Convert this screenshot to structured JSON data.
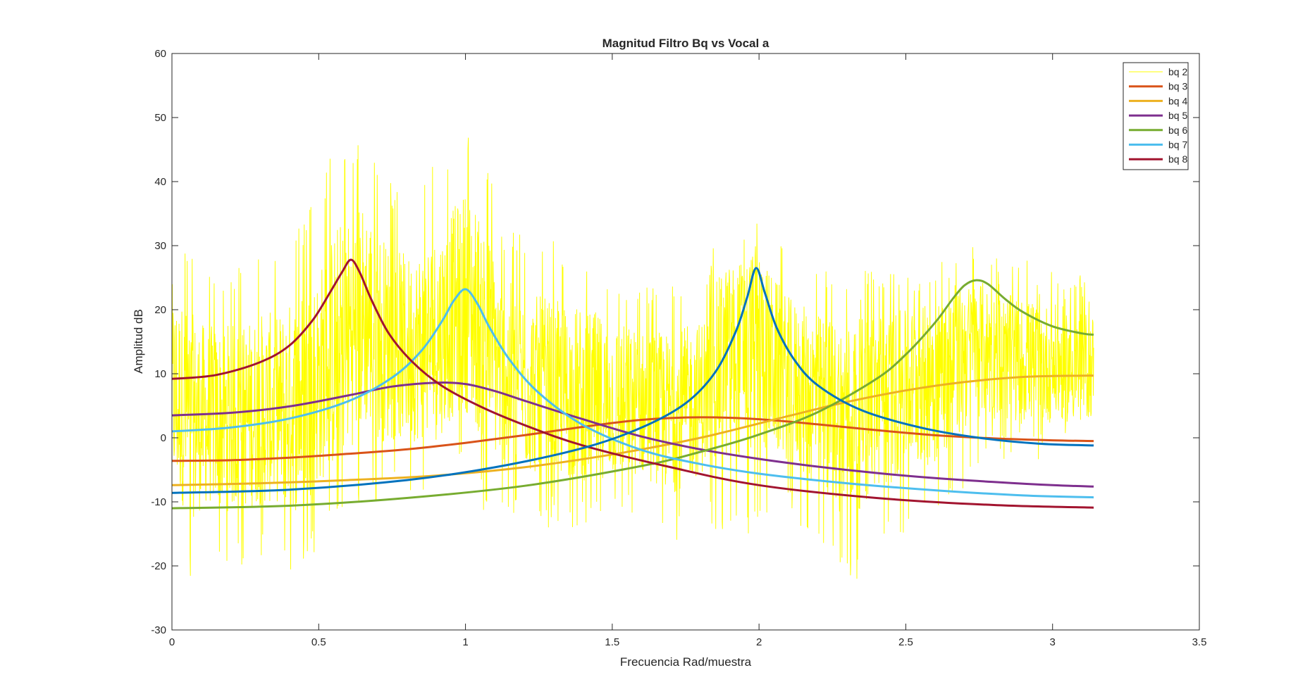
{
  "chart_data": {
    "type": "line",
    "title": "Magnitud Filtro Bq vs Vocal a",
    "xlabel": "Frecuencia Rad/muestra",
    "ylabel": "Amplitud dB",
    "xlim": [
      0,
      3.5
    ],
    "ylim": [
      -30,
      60
    ],
    "xticks": [
      "0",
      "0.5",
      "1",
      "1.5",
      "2",
      "2.5",
      "3",
      "3.5"
    ],
    "yticks": [
      "-30",
      "-20",
      "-10",
      "0",
      "10",
      "20",
      "30",
      "40",
      "50",
      "60"
    ],
    "grid": false,
    "legend_position": "top-right",
    "series": [
      {
        "name": "bq 2",
        "color": "#ffff00",
        "style": "noisy-spectrum",
        "x": [
          0,
          0.06,
          0.12,
          0.18,
          0.24,
          0.3,
          0.36,
          0.42,
          0.5,
          0.56,
          0.6,
          0.66,
          0.72,
          0.8,
          0.9,
          0.96,
          1.0,
          1.06,
          1.12,
          1.2,
          1.3,
          1.4,
          1.5,
          1.6,
          1.7,
          1.8,
          1.88,
          1.95,
          1.99,
          2.04,
          2.1,
          2.2,
          2.3,
          2.4,
          2.5,
          2.6,
          2.7,
          2.75,
          2.8,
          2.9,
          3.0,
          3.1,
          3.14
        ],
        "envelope_high": [
          36,
          30,
          27,
          28,
          27,
          30,
          29,
          33,
          38,
          47,
          46,
          50,
          41,
          38,
          43,
          47,
          50,
          46,
          34,
          32,
          31,
          30,
          27,
          25,
          24,
          26,
          35,
          34,
          37,
          33,
          30,
          27,
          25,
          27,
          26,
          27,
          29,
          31,
          28,
          28,
          27,
          26,
          26
        ],
        "envelope_low": [
          -14,
          -23,
          -18,
          -20,
          -20,
          -19,
          -19,
          -22,
          -17,
          -15,
          -13,
          -9,
          -11,
          -9,
          -10,
          -6,
          -6,
          -12,
          -14,
          -14,
          -14,
          -14,
          -13,
          -12,
          -17,
          -13,
          -15,
          -18,
          -14,
          -14,
          -11,
          -18,
          -24,
          -20,
          -15,
          -14,
          -8,
          -4,
          -4,
          -4,
          -3,
          -2,
          -1
        ],
        "trend": [
          5,
          3,
          2,
          2,
          3,
          3,
          4,
          5,
          8,
          12,
          16,
          18,
          16,
          13,
          15,
          18,
          21,
          17,
          11,
          8,
          6,
          5,
          5,
          4,
          4,
          6,
          14,
          18,
          19,
          14,
          9,
          7,
          6,
          8,
          10,
          12,
          15,
          15,
          14,
          12,
          11,
          10,
          10
        ]
      },
      {
        "name": "bq 3",
        "color": "#d95319",
        "x": [
          0,
          0.2,
          0.4,
          0.6,
          0.8,
          1.0,
          1.2,
          1.4,
          1.6,
          1.8,
          2.0,
          2.2,
          2.4,
          2.6,
          2.8,
          3.0,
          3.14
        ],
        "y": [
          -3.6,
          -3.5,
          -3.1,
          -2.5,
          -1.8,
          -0.8,
          0.4,
          1.7,
          2.8,
          3.2,
          2.9,
          2.1,
          1.2,
          0.4,
          -0.1,
          -0.4,
          -0.5
        ]
      },
      {
        "name": "bq 4",
        "color": "#edb120",
        "x": [
          0,
          0.3,
          0.6,
          0.9,
          1.2,
          1.5,
          1.8,
          2.1,
          2.3,
          2.5,
          2.7,
          2.9,
          3.1,
          3.14
        ],
        "y": [
          -7.4,
          -7.1,
          -6.6,
          -5.9,
          -4.6,
          -2.6,
          0.0,
          3.4,
          5.6,
          7.4,
          8.7,
          9.5,
          9.7,
          9.7
        ]
      },
      {
        "name": "bq 5",
        "color": "#7e2f8e",
        "x": [
          0,
          0.2,
          0.4,
          0.6,
          0.75,
          0.9,
          1.0,
          1.1,
          1.2,
          1.4,
          1.6,
          1.8,
          2.0,
          2.2,
          2.4,
          2.6,
          2.8,
          3.0,
          3.14
        ],
        "y": [
          3.5,
          3.9,
          4.9,
          6.6,
          8.0,
          8.6,
          8.4,
          7.3,
          5.8,
          2.9,
          0.2,
          -1.8,
          -3.3,
          -4.5,
          -5.5,
          -6.3,
          -6.9,
          -7.4,
          -7.6
        ]
      },
      {
        "name": "bq 6",
        "color": "#77ac30",
        "x": [
          0,
          0.4,
          0.8,
          1.2,
          1.6,
          1.8,
          2.0,
          2.2,
          2.4,
          2.5,
          2.6,
          2.66,
          2.7,
          2.74,
          2.78,
          2.84,
          2.9,
          3.0,
          3.1,
          3.14
        ],
        "y": [
          -11.0,
          -10.6,
          -9.4,
          -7.5,
          -4.4,
          -2.2,
          0.5,
          4.0,
          9.2,
          13.0,
          18.0,
          21.7,
          23.8,
          24.6,
          24.0,
          21.6,
          19.6,
          17.4,
          16.3,
          16.1
        ]
      },
      {
        "name": "bq 7",
        "color": "#4dbeee",
        "x": [
          0,
          0.2,
          0.4,
          0.6,
          0.75,
          0.85,
          0.92,
          0.96,
          1.0,
          1.04,
          1.08,
          1.15,
          1.25,
          1.4,
          1.6,
          1.8,
          2.0,
          2.3,
          2.6,
          2.9,
          3.14
        ],
        "y": [
          1.0,
          1.6,
          3.0,
          5.7,
          9.4,
          13.6,
          18.2,
          21.4,
          23.2,
          21.0,
          17.4,
          12.2,
          7.0,
          2.0,
          -1.9,
          -4.1,
          -5.6,
          -7.1,
          -8.2,
          -9.0,
          -9.3
        ]
      },
      {
        "name": "bq 8",
        "color": "#a2142f",
        "x": [
          0,
          0.15,
          0.3,
          0.4,
          0.48,
          0.54,
          0.58,
          0.61,
          0.64,
          0.68,
          0.74,
          0.82,
          0.92,
          1.05,
          1.2,
          1.4,
          1.7,
          2.0,
          2.4,
          2.8,
          3.14
        ],
        "y": [
          9.2,
          9.8,
          11.8,
          14.4,
          18.4,
          22.8,
          25.9,
          27.8,
          25.8,
          21.5,
          16.2,
          11.8,
          8.1,
          4.9,
          2.0,
          -1.2,
          -4.6,
          -7.4,
          -9.4,
          -10.5,
          -10.9
        ]
      },
      {
        "name": "",
        "color": "#0072bd",
        "x": [
          0,
          0.4,
          0.8,
          1.1,
          1.4,
          1.6,
          1.75,
          1.85,
          1.92,
          1.96,
          1.99,
          2.02,
          2.06,
          2.12,
          2.2,
          2.35,
          2.55,
          2.75,
          2.95,
          3.14
        ],
        "y": [
          -8.6,
          -8.1,
          -6.6,
          -4.6,
          -1.6,
          1.6,
          5.4,
          10.2,
          16.5,
          22.0,
          26.5,
          22.6,
          17.2,
          12.2,
          8.2,
          4.3,
          1.6,
          0.0,
          -0.9,
          -1.2
        ]
      }
    ]
  }
}
